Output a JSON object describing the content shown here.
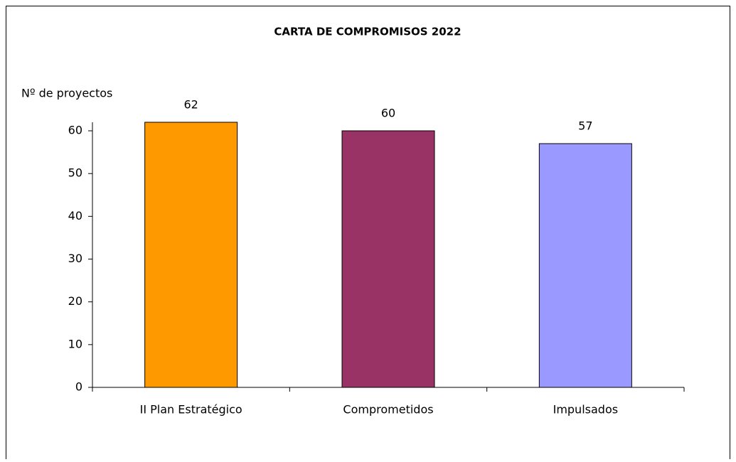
{
  "chart_data": {
    "type": "bar",
    "title": "CARTA DE COMPROMISOS 2022",
    "y_label": "Nº de proyectos",
    "categories": [
      "II Plan Estratégico",
      "Comprometidos",
      "Impulsados"
    ],
    "values": [
      62,
      60,
      57
    ],
    "colors": [
      "#ff9900",
      "#993366",
      "#9999ff"
    ],
    "ylim": [
      0,
      62
    ],
    "yticks": [
      0,
      10,
      20,
      30,
      40,
      50,
      60
    ],
    "grid": false
  }
}
